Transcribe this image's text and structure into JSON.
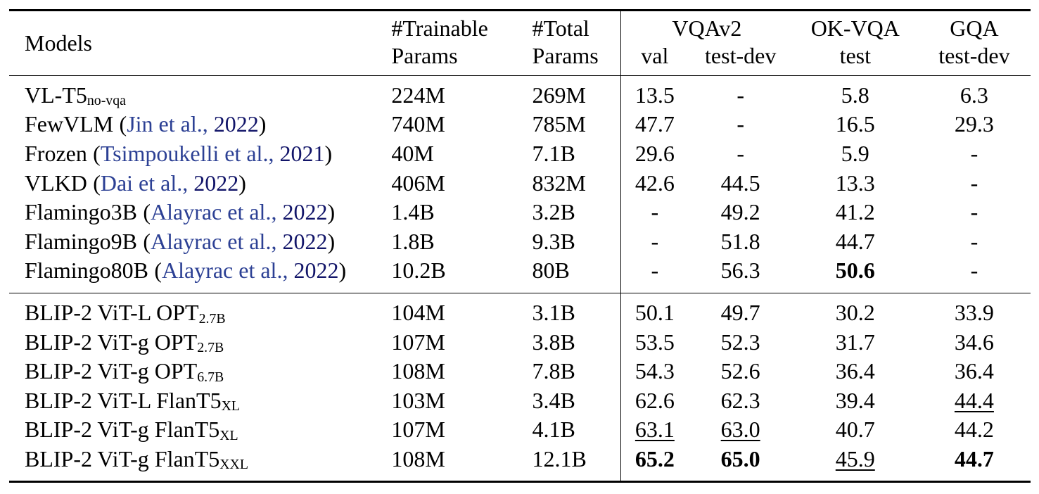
{
  "colors": {
    "background": "#ffffff",
    "text": "#000000",
    "rule": "#000000",
    "citation_authors": "#2c4094",
    "citation_year": "#121569"
  },
  "punctuation": {
    "cite_open": "(",
    "cite_sep": ", ",
    "cite_close": ")"
  },
  "header": {
    "models": "Models",
    "trainable_line1": "#Trainable",
    "trainable_line2": "Params",
    "total_line1": "#Total",
    "total_line2": "Params",
    "vqav2": "VQAv2",
    "vqav2_val": "val",
    "vqav2_testdev": "test-dev",
    "okvqa": "OK-VQA",
    "okvqa_sub": "test",
    "gqa": "GQA",
    "gqa_sub": "test-dev"
  },
  "groups": [
    {
      "name": "prior-methods",
      "rows": [
        {
          "model": {
            "name": "VL-T5",
            "subscript": "no-vqa",
            "citation": null
          },
          "trainable": "224M",
          "total": "269M",
          "scores": [
            {
              "text": "13.5",
              "style": "plain"
            },
            {
              "text": "-",
              "style": "plain"
            },
            {
              "text": "5.8",
              "style": "plain"
            },
            {
              "text": "6.3",
              "style": "plain"
            }
          ]
        },
        {
          "model": {
            "name": "FewVLM",
            "subscript": "",
            "citation": {
              "authors": "Jin et al.",
              "year": "2022"
            }
          },
          "trainable": "740M",
          "total": "785M",
          "scores": [
            {
              "text": "47.7",
              "style": "plain"
            },
            {
              "text": "-",
              "style": "plain"
            },
            {
              "text": "16.5",
              "style": "plain"
            },
            {
              "text": "29.3",
              "style": "plain"
            }
          ]
        },
        {
          "model": {
            "name": "Frozen",
            "subscript": "",
            "citation": {
              "authors": "Tsimpoukelli et al.",
              "year": "2021"
            }
          },
          "trainable": "40M",
          "total": "7.1B",
          "scores": [
            {
              "text": "29.6",
              "style": "plain"
            },
            {
              "text": "-",
              "style": "plain"
            },
            {
              "text": "5.9",
              "style": "plain"
            },
            {
              "text": "-",
              "style": "plain"
            }
          ]
        },
        {
          "model": {
            "name": "VLKD",
            "subscript": "",
            "citation": {
              "authors": "Dai et al.",
              "year": "2022"
            }
          },
          "trainable": "406M",
          "total": "832M",
          "scores": [
            {
              "text": "42.6",
              "style": "plain"
            },
            {
              "text": "44.5",
              "style": "plain"
            },
            {
              "text": "13.3",
              "style": "plain"
            },
            {
              "text": "-",
              "style": "plain"
            }
          ]
        },
        {
          "model": {
            "name": "Flamingo3B",
            "subscript": "",
            "citation": {
              "authors": "Alayrac et al.",
              "year": "2022"
            }
          },
          "trainable": "1.4B",
          "total": "3.2B",
          "scores": [
            {
              "text": "-",
              "style": "plain"
            },
            {
              "text": "49.2",
              "style": "plain"
            },
            {
              "text": "41.2",
              "style": "plain"
            },
            {
              "text": "-",
              "style": "plain"
            }
          ]
        },
        {
          "model": {
            "name": "Flamingo9B",
            "subscript": "",
            "citation": {
              "authors": "Alayrac et al.",
              "year": "2022"
            }
          },
          "trainable": "1.8B",
          "total": "9.3B",
          "scores": [
            {
              "text": "-",
              "style": "plain"
            },
            {
              "text": "51.8",
              "style": "plain"
            },
            {
              "text": "44.7",
              "style": "plain"
            },
            {
              "text": "-",
              "style": "plain"
            }
          ]
        },
        {
          "model": {
            "name": "Flamingo80B",
            "subscript": "",
            "citation": {
              "authors": "Alayrac et al.",
              "year": "2022"
            }
          },
          "trainable": "10.2B",
          "total": "80B",
          "scores": [
            {
              "text": "-",
              "style": "plain"
            },
            {
              "text": "56.3",
              "style": "plain"
            },
            {
              "text": "50.6",
              "style": "bold"
            },
            {
              "text": "-",
              "style": "plain"
            }
          ]
        }
      ]
    },
    {
      "name": "blip2-methods",
      "rows": [
        {
          "model": {
            "name": "BLIP-2 ViT-L OPT",
            "subscript": "2.7B",
            "citation": null
          },
          "trainable": "104M",
          "total": "3.1B",
          "scores": [
            {
              "text": "50.1",
              "style": "plain"
            },
            {
              "text": "49.7",
              "style": "plain"
            },
            {
              "text": "30.2",
              "style": "plain"
            },
            {
              "text": "33.9",
              "style": "plain"
            }
          ]
        },
        {
          "model": {
            "name": "BLIP-2 ViT-g OPT",
            "subscript": "2.7B",
            "citation": null
          },
          "trainable": "107M",
          "total": "3.8B",
          "scores": [
            {
              "text": "53.5",
              "style": "plain"
            },
            {
              "text": "52.3",
              "style": "plain"
            },
            {
              "text": "31.7",
              "style": "plain"
            },
            {
              "text": "34.6",
              "style": "plain"
            }
          ]
        },
        {
          "model": {
            "name": "BLIP-2 ViT-g OPT",
            "subscript": "6.7B",
            "citation": null
          },
          "trainable": "108M",
          "total": "7.8B",
          "scores": [
            {
              "text": "54.3",
              "style": "plain"
            },
            {
              "text": "52.6",
              "style": "plain"
            },
            {
              "text": "36.4",
              "style": "plain"
            },
            {
              "text": "36.4",
              "style": "plain"
            }
          ]
        },
        {
          "model": {
            "name": "BLIP-2 ViT-L FlanT5",
            "subscript": "XL",
            "citation": null
          },
          "trainable": "103M",
          "total": "3.4B",
          "scores": [
            {
              "text": "62.6",
              "style": "plain"
            },
            {
              "text": "62.3",
              "style": "plain"
            },
            {
              "text": "39.4",
              "style": "plain"
            },
            {
              "text": "44.4",
              "style": "underline"
            }
          ]
        },
        {
          "model": {
            "name": "BLIP-2 ViT-g FlanT5",
            "subscript": "XL",
            "citation": null
          },
          "trainable": "107M",
          "total": "4.1B",
          "scores": [
            {
              "text": "63.1",
              "style": "underline"
            },
            {
              "text": "63.0",
              "style": "underline"
            },
            {
              "text": "40.7",
              "style": "plain"
            },
            {
              "text": "44.2",
              "style": "plain"
            }
          ]
        },
        {
          "model": {
            "name": "BLIP-2 ViT-g FlanT5",
            "subscript": "XXL",
            "citation": null
          },
          "trainable": "108M",
          "total": "12.1B",
          "scores": [
            {
              "text": "65.2",
              "style": "bold"
            },
            {
              "text": "65.0",
              "style": "bold"
            },
            {
              "text": "45.9",
              "style": "underline"
            },
            {
              "text": "44.7",
              "style": "bold"
            }
          ]
        }
      ]
    }
  ]
}
